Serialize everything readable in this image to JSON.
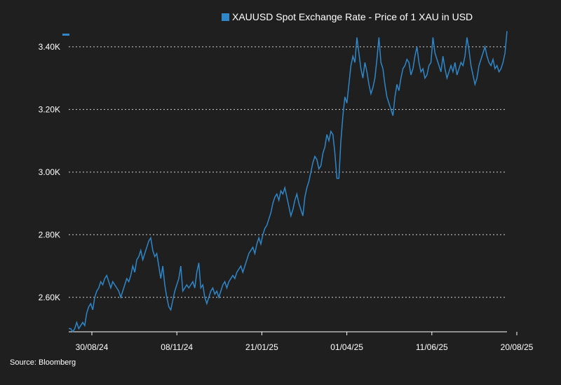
{
  "chart_data": {
    "type": "line",
    "title": "",
    "xlabel": "",
    "ylabel": "",
    "ylim": [
      2.49,
      3.46
    ],
    "y_ticks": [
      2.6,
      2.8,
      3.0,
      3.2,
      3.4
    ],
    "y_tick_labels": [
      "2.60K",
      "2.80K",
      "3.00K",
      "3.20K",
      "3.40K"
    ],
    "x_tick_labels": [
      "30/08/24",
      "08/11/24",
      "21/01/25",
      "01/04/25",
      "11/06/25",
      "20/08/25"
    ],
    "grid": "horizontal dotted",
    "legend_position": "top-right",
    "series": [
      {
        "name": "XAUUSD Spot Exchange Rate - Price of 1 XAU in USD",
        "color": "#2f86c8",
        "values": [
          2.5,
          2.5,
          2.49,
          2.5,
          2.52,
          2.5,
          2.51,
          2.52,
          2.51,
          2.55,
          2.57,
          2.58,
          2.56,
          2.6,
          2.62,
          2.63,
          2.65,
          2.64,
          2.66,
          2.67,
          2.65,
          2.63,
          2.65,
          2.64,
          2.63,
          2.62,
          2.6,
          2.62,
          2.64,
          2.66,
          2.65,
          2.67,
          2.7,
          2.68,
          2.72,
          2.73,
          2.75,
          2.72,
          2.74,
          2.76,
          2.78,
          2.79,
          2.75,
          2.73,
          2.74,
          2.7,
          2.66,
          2.7,
          2.64,
          2.6,
          2.57,
          2.56,
          2.59,
          2.62,
          2.64,
          2.66,
          2.7,
          2.62,
          2.63,
          2.64,
          2.63,
          2.64,
          2.65,
          2.63,
          2.68,
          2.71,
          2.63,
          2.64,
          2.6,
          2.58,
          2.6,
          2.62,
          2.63,
          2.61,
          2.62,
          2.6,
          2.62,
          2.64,
          2.65,
          2.63,
          2.65,
          2.66,
          2.67,
          2.66,
          2.68,
          2.69,
          2.7,
          2.68,
          2.7,
          2.72,
          2.74,
          2.75,
          2.76,
          2.74,
          2.77,
          2.79,
          2.77,
          2.8,
          2.82,
          2.83,
          2.85,
          2.87,
          2.9,
          2.92,
          2.93,
          2.91,
          2.94,
          2.93,
          2.95,
          2.92,
          2.89,
          2.86,
          2.88,
          2.91,
          2.93,
          2.9,
          2.88,
          2.86,
          2.92,
          2.95,
          2.97,
          3.0,
          3.03,
          3.05,
          3.04,
          3.01,
          3.02,
          3.06,
          3.08,
          3.12,
          3.1,
          3.13,
          3.12,
          3.06,
          2.98,
          2.98,
          3.1,
          3.18,
          3.24,
          3.22,
          3.28,
          3.34,
          3.37,
          3.35,
          3.43,
          3.38,
          3.33,
          3.3,
          3.35,
          3.32,
          3.28,
          3.25,
          3.27,
          3.3,
          3.36,
          3.43,
          3.35,
          3.33,
          3.28,
          3.24,
          3.22,
          3.2,
          3.18,
          3.24,
          3.28,
          3.26,
          3.3,
          3.33,
          3.34,
          3.36,
          3.35,
          3.31,
          3.33,
          3.37,
          3.4,
          3.35,
          3.32,
          3.33,
          3.3,
          3.31,
          3.34,
          3.35,
          3.43,
          3.38,
          3.36,
          3.34,
          3.32,
          3.37,
          3.33,
          3.3,
          3.32,
          3.34,
          3.32,
          3.35,
          3.31,
          3.33,
          3.35,
          3.34,
          3.37,
          3.43,
          3.39,
          3.34,
          3.31,
          3.28,
          3.3,
          3.34,
          3.36,
          3.38,
          3.4,
          3.37,
          3.35,
          3.34,
          3.36,
          3.33,
          3.34,
          3.32,
          3.33,
          3.35,
          3.38,
          3.45
        ]
      }
    ],
    "source": "Source: Bloomberg"
  }
}
